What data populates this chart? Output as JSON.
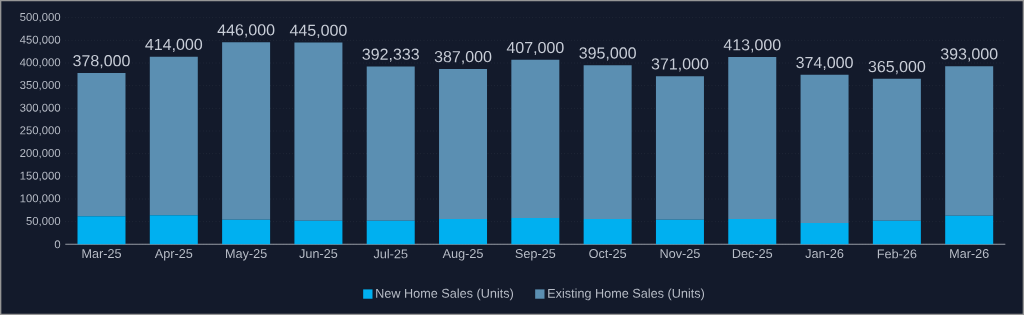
{
  "chart_data": {
    "type": "bar",
    "stacked": true,
    "categories": [
      "Mar-25",
      "Apr-25",
      "May-25",
      "Jun-25",
      "Jul-25",
      "Aug-25",
      "Sep-25",
      "Oct-25",
      "Nov-25",
      "Dec-25",
      "Jan-26",
      "Feb-26",
      "Mar-26"
    ],
    "series": [
      {
        "name": "New Home Sales (Units)",
        "color": "#00b0f0",
        "values": [
          62000,
          64000,
          54000,
          52000,
          52000,
          56000,
          58000,
          56000,
          54000,
          56000,
          47000,
          52000,
          63000
        ]
      },
      {
        "name": "Existing Home Sales (Units)",
        "color": "#5b8fb2",
        "values": [
          316000,
          350000,
          392000,
          393000,
          340333,
          331000,
          349000,
          339000,
          317000,
          357000,
          327000,
          313000,
          330000
        ]
      }
    ],
    "totals": [
      "378,000",
      "414,000",
      "446,000",
      "445,000",
      "392,333",
      "387,000",
      "407,000",
      "395,000",
      "371,000",
      "413,000",
      "374,000",
      "365,000",
      "393,000"
    ],
    "ylim": [
      0,
      500000
    ],
    "yticks": [
      0,
      {
        "value": 50000,
        "label": "50,000"
      },
      {
        "value": 100000,
        "label": "100,000"
      },
      {
        "value": 150000,
        "label": "150,000"
      },
      {
        "value": 200000,
        "label": "200,000"
      },
      {
        "value": 250000,
        "label": "250,000"
      },
      {
        "value": 300000,
        "label": "300,000"
      },
      {
        "value": 350000,
        "label": "350,000"
      },
      {
        "value": 400000,
        "label": "400,000"
      },
      {
        "value": 450000,
        "label": "450,000"
      },
      {
        "value": 500000,
        "label": "500,000"
      }
    ],
    "grid": "y",
    "legend": "bottom"
  }
}
